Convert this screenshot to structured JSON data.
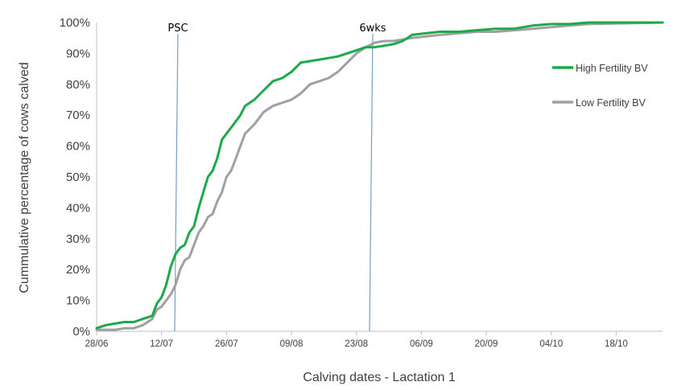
{
  "chart_data": {
    "type": "line",
    "title": "",
    "xlabel": "Calving dates - Lactation 1",
    "ylabel": "Cummulative percentage of cows calved",
    "x_tick_labels": [
      "28/06",
      "12/07",
      "26/07",
      "09/08",
      "23/08",
      "06/09",
      "20/09",
      "04/10",
      "18/10"
    ],
    "y_tick_labels": [
      "0%",
      "10%",
      "20%",
      "30%",
      "40%",
      "50%",
      "60%",
      "70%",
      "80%",
      "90%",
      "100%"
    ],
    "x_range": [
      "28/06",
      "28/10"
    ],
    "ylim": [
      0,
      100
    ],
    "grid": false,
    "legend_position": "right",
    "reference_lines": [
      {
        "label": "PSC",
        "date": "15/07"
      },
      {
        "label": "6wks",
        "date": "26/08"
      }
    ],
    "series": [
      {
        "name": "High Fertility BV",
        "color": "#1fa84a",
        "points": [
          [
            "28/06",
            1
          ],
          [
            "30/06",
            2
          ],
          [
            "02/07",
            2.5
          ],
          [
            "04/07",
            3
          ],
          [
            "06/07",
            3
          ],
          [
            "08/07",
            4
          ],
          [
            "10/07",
            5
          ],
          [
            "11/07",
            9
          ],
          [
            "12/07",
            11
          ],
          [
            "13/07",
            15
          ],
          [
            "14/07",
            21
          ],
          [
            "15/07",
            25
          ],
          [
            "16/07",
            27
          ],
          [
            "17/07",
            28
          ],
          [
            "18/07",
            32
          ],
          [
            "19/07",
            34
          ],
          [
            "20/07",
            40
          ],
          [
            "21/07",
            45
          ],
          [
            "22/07",
            50
          ],
          [
            "23/07",
            52
          ],
          [
            "24/07",
            56
          ],
          [
            "25/07",
            62
          ],
          [
            "26/07",
            64
          ],
          [
            "27/07",
            66
          ],
          [
            "28/07",
            68
          ],
          [
            "29/07",
            70
          ],
          [
            "30/07",
            73
          ],
          [
            "01/08",
            75
          ],
          [
            "03/08",
            78
          ],
          [
            "05/08",
            81
          ],
          [
            "07/08",
            82
          ],
          [
            "09/08",
            84
          ],
          [
            "11/08",
            87
          ],
          [
            "13/08",
            87.5
          ],
          [
            "15/08",
            88
          ],
          [
            "17/08",
            88.5
          ],
          [
            "19/08",
            89
          ],
          [
            "21/08",
            90
          ],
          [
            "23/08",
            91
          ],
          [
            "25/08",
            92
          ],
          [
            "27/08",
            92
          ],
          [
            "29/08",
            92.5
          ],
          [
            "31/08",
            93
          ],
          [
            "02/09",
            94
          ],
          [
            "04/09",
            96
          ],
          [
            "07/09",
            96.5
          ],
          [
            "10/09",
            97
          ],
          [
            "14/09",
            97
          ],
          [
            "18/09",
            97.5
          ],
          [
            "22/09",
            98
          ],
          [
            "26/09",
            98
          ],
          [
            "30/09",
            99
          ],
          [
            "04/10",
            99.5
          ],
          [
            "08/10",
            99.5
          ],
          [
            "12/10",
            100
          ],
          [
            "28/10",
            100
          ]
        ]
      },
      {
        "name": "Low Fertility BV",
        "color": "#a0a0a0",
        "points": [
          [
            "28/06",
            0.5
          ],
          [
            "30/06",
            0.5
          ],
          [
            "02/07",
            0.5
          ],
          [
            "04/07",
            1
          ],
          [
            "06/07",
            1
          ],
          [
            "08/07",
            2
          ],
          [
            "10/07",
            4
          ],
          [
            "11/07",
            7
          ],
          [
            "12/07",
            8
          ],
          [
            "13/07",
            10
          ],
          [
            "14/07",
            12
          ],
          [
            "15/07",
            15
          ],
          [
            "16/07",
            20
          ],
          [
            "17/07",
            23
          ],
          [
            "18/07",
            24
          ],
          [
            "19/07",
            28
          ],
          [
            "20/07",
            32
          ],
          [
            "21/07",
            34
          ],
          [
            "22/07",
            37
          ],
          [
            "23/07",
            38
          ],
          [
            "24/07",
            42
          ],
          [
            "25/07",
            45
          ],
          [
            "26/07",
            50
          ],
          [
            "27/07",
            52
          ],
          [
            "28/07",
            56
          ],
          [
            "29/07",
            60
          ],
          [
            "30/07",
            64
          ],
          [
            "01/08",
            67
          ],
          [
            "03/08",
            71
          ],
          [
            "05/08",
            73
          ],
          [
            "07/08",
            74
          ],
          [
            "09/08",
            75
          ],
          [
            "11/08",
            77
          ],
          [
            "13/08",
            80
          ],
          [
            "15/08",
            81
          ],
          [
            "17/08",
            82
          ],
          [
            "19/08",
            84
          ],
          [
            "21/08",
            87
          ],
          [
            "23/08",
            90
          ],
          [
            "25/08",
            92
          ],
          [
            "27/08",
            93.5
          ],
          [
            "29/08",
            94
          ],
          [
            "31/08",
            94
          ],
          [
            "02/09",
            94.5
          ],
          [
            "04/09",
            95
          ],
          [
            "07/09",
            95.5
          ],
          [
            "10/09",
            96
          ],
          [
            "14/09",
            96.5
          ],
          [
            "18/09",
            97
          ],
          [
            "22/09",
            97
          ],
          [
            "26/09",
            97.5
          ],
          [
            "30/09",
            98
          ],
          [
            "04/10",
            98.5
          ],
          [
            "08/10",
            99
          ],
          [
            "12/10",
            99.5
          ],
          [
            "28/10",
            100
          ]
        ]
      }
    ]
  }
}
